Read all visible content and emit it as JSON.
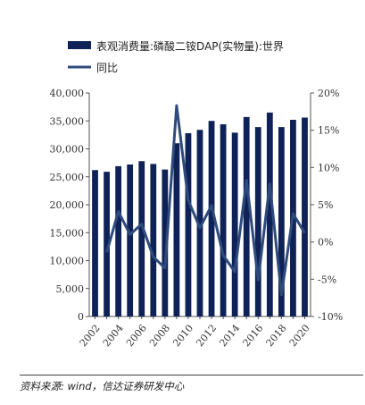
{
  "chart_data": {
    "type": "bar",
    "x": [
      "2002",
      "2003",
      "2004",
      "2005",
      "2006",
      "2007",
      "2008",
      "2009",
      "2010",
      "2011",
      "2012",
      "2013",
      "2014",
      "2015",
      "2016",
      "2017",
      "2018",
      "2019",
      "2020"
    ],
    "x_tick_labels": [
      "2002",
      "2004",
      "2006",
      "2008",
      "2010",
      "2012",
      "2014",
      "2016",
      "2018",
      "2020"
    ],
    "series": [
      {
        "name": "表观消费量:磷酸二铵DAP(实物量):世界",
        "type": "bar",
        "axis": "left",
        "color": "#0f2257",
        "values": [
          26200,
          25900,
          26900,
          27200,
          27800,
          27300,
          26300,
          31000,
          32800,
          33400,
          35000,
          34400,
          32900,
          35700,
          33900,
          36500,
          33900,
          35200,
          35600
        ]
      },
      {
        "name": "同比",
        "type": "line",
        "axis": "right",
        "color": "#2e4b7c",
        "values": [
          null,
          -1.4,
          4.1,
          1.0,
          2.4,
          -2.0,
          -3.5,
          18.3,
          5.6,
          1.9,
          4.9,
          -1.8,
          -4.0,
          8.3,
          -5.1,
          7.8,
          -7.1,
          3.8,
          1.2
        ]
      }
    ],
    "y_left": {
      "ylim": [
        0,
        40000
      ],
      "ticks": [
        "0",
        "5,000",
        "10,000",
        "15,000",
        "20,000",
        "25,000",
        "30,000",
        "35,000",
        "40,000"
      ]
    },
    "y_right": {
      "ylim": [
        -10,
        20
      ],
      "ticks": [
        "-10%",
        "-5%",
        "0%",
        "5%",
        "10%",
        "15%",
        "20%"
      ]
    },
    "legend_position": "top",
    "grid": false
  },
  "source": "资料来源: wind，信达证券研发中心"
}
